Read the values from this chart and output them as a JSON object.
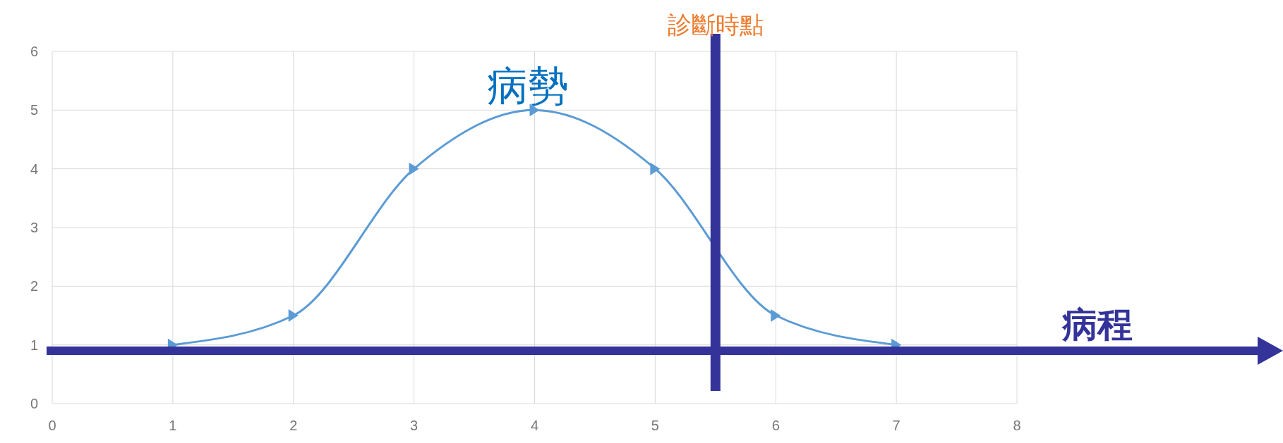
{
  "chart_data": {
    "type": "line",
    "x": [
      1,
      2,
      3,
      4,
      5,
      6,
      7
    ],
    "series": [
      {
        "color": "#5b9bd5",
        "values": [
          1,
          1.5,
          4,
          5,
          4,
          1.5,
          1
        ]
      }
    ],
    "xlim": [
      0,
      8
    ],
    "xticks": [
      0,
      1,
      2,
      3,
      4,
      5,
      6,
      7,
      8
    ],
    "ylim": [
      0,
      6
    ],
    "yticks": [
      0,
      1,
      2,
      3,
      4,
      5,
      6
    ],
    "grid": true,
    "marker": "triangle",
    "line_style": "solid",
    "ref_lines": [
      {
        "axis": "x",
        "value": 5.5,
        "label": "診斷時點",
        "color": "#333399"
      },
      {
        "axis": "y",
        "value": 0.9,
        "label": "病程",
        "color": "#333399"
      }
    ],
    "annotations": [
      {
        "text": "病勢",
        "x": 4,
        "y": 5
      }
    ]
  }
}
